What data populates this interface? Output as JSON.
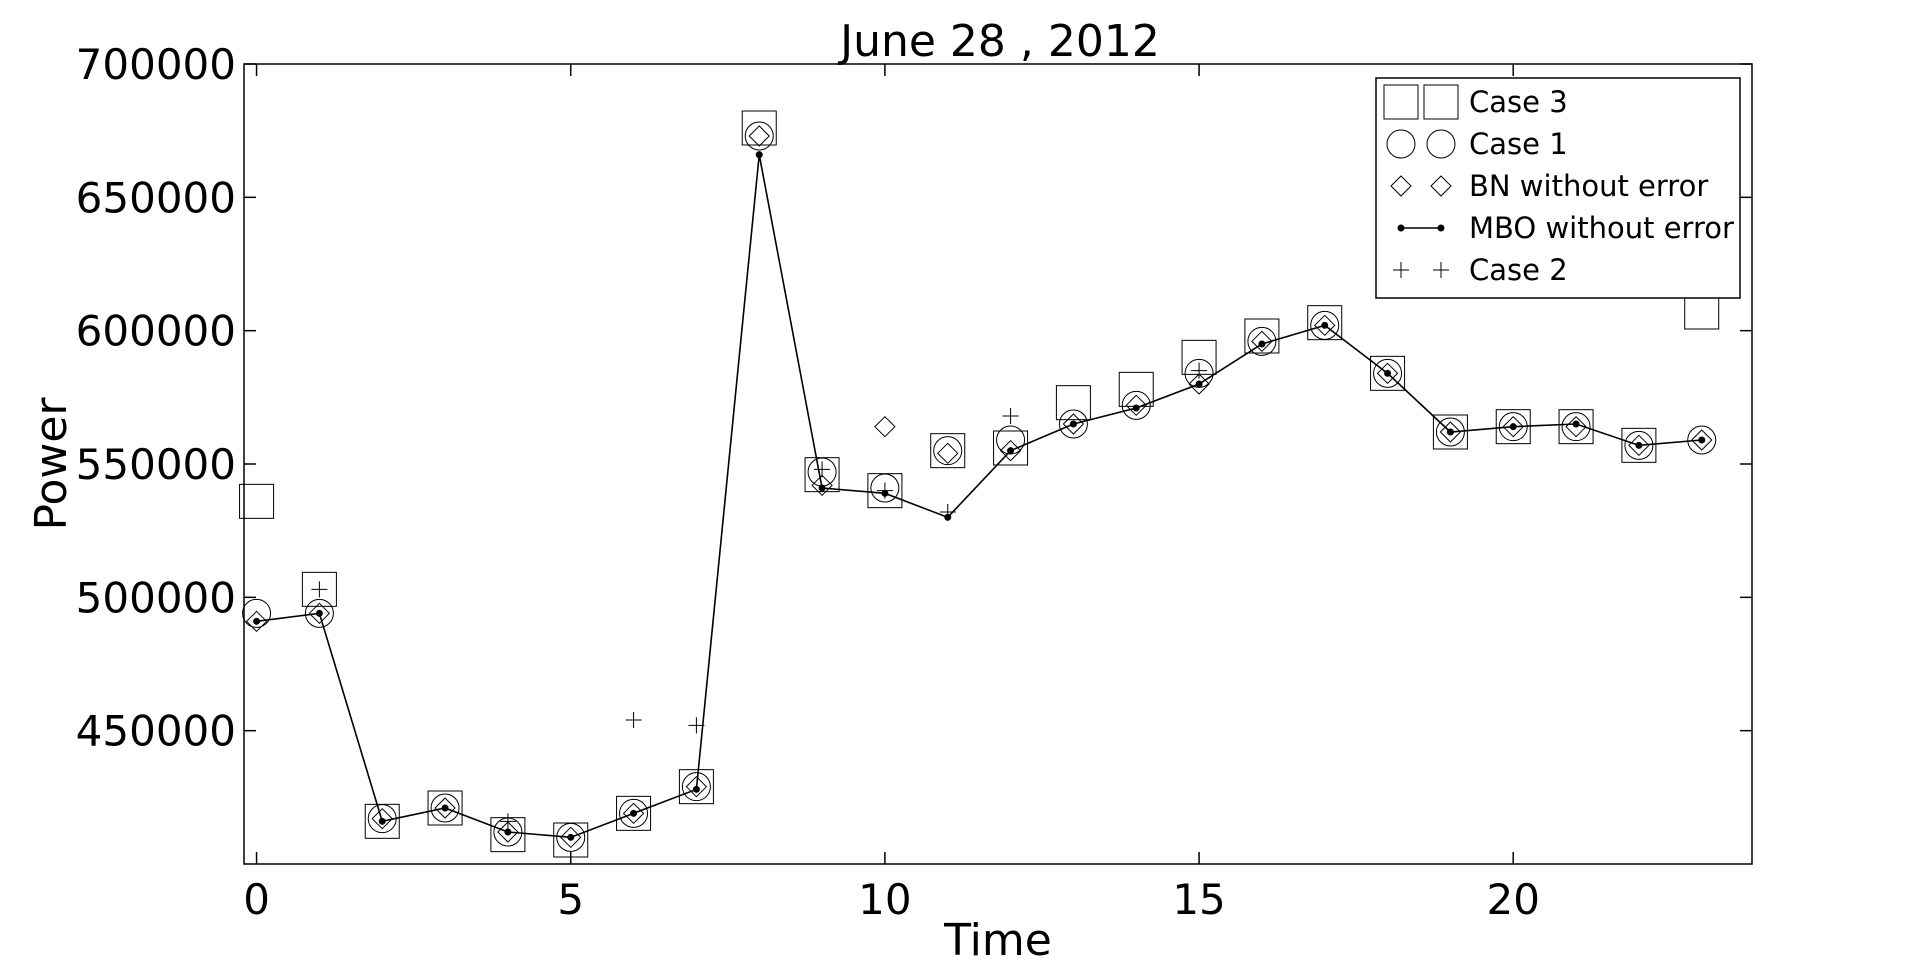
{
  "chart_data": {
    "type": "scatter",
    "title": "June 28 , 2012",
    "xlabel": "Time",
    "ylabel": "Power",
    "xlim": [
      -0.2,
      23.8
    ],
    "ylim": [
      400000,
      700000
    ],
    "xticks": [
      0,
      5,
      10,
      15,
      20
    ],
    "yticks": [
      450000,
      500000,
      550000,
      600000,
      650000,
      700000
    ],
    "xtick_labels": [
      "0",
      "5",
      "10",
      "15",
      "20"
    ],
    "ytick_labels": [
      "450000",
      "500000",
      "550000",
      "600000",
      "650000",
      "700000"
    ],
    "grid": false,
    "legend_position": "top-right",
    "series": [
      {
        "name": "Case 3",
        "marker": "square",
        "x": [
          0,
          1,
          2,
          3,
          4,
          5,
          6,
          7,
          8,
          9,
          10,
          11,
          12,
          13,
          14,
          15,
          16,
          17,
          18,
          19,
          20,
          21,
          22,
          23
        ],
        "y": [
          536000,
          503000,
          416000,
          421000,
          411000,
          409000,
          419000,
          429000,
          676000,
          546000,
          540000,
          555000,
          556000,
          573000,
          578000,
          590000,
          598000,
          603000,
          584000,
          562000,
          564000,
          564000,
          557000,
          607000
        ]
      },
      {
        "name": "Case 1",
        "marker": "circle",
        "x": [
          0,
          1,
          2,
          3,
          4,
          5,
          6,
          7,
          8,
          9,
          10,
          11,
          12,
          13,
          14,
          15,
          16,
          17,
          18,
          19,
          20,
          21,
          22,
          23
        ],
        "y": [
          494000,
          494000,
          417000,
          421000,
          412000,
          410000,
          419000,
          429000,
          673000,
          547000,
          541000,
          555000,
          559000,
          565000,
          572000,
          584000,
          596000,
          602000,
          584000,
          562000,
          564000,
          564000,
          557000,
          559000
        ]
      },
      {
        "name": "BN without error",
        "marker": "diamond",
        "x": [
          0,
          1,
          2,
          3,
          4,
          5,
          6,
          7,
          8,
          9,
          10,
          11,
          12,
          13,
          14,
          15,
          16,
          17,
          18,
          19,
          20,
          21,
          22,
          23
        ],
        "y": [
          491000,
          494000,
          417000,
          421000,
          412000,
          410000,
          419000,
          429000,
          673000,
          542000,
          564000,
          554000,
          555000,
          565000,
          572000,
          580000,
          596000,
          602000,
          584000,
          562000,
          564000,
          564000,
          557000,
          559000
        ]
      },
      {
        "name": "MBO without error",
        "marker": "line-dot",
        "x": [
          0,
          1,
          2,
          3,
          4,
          5,
          6,
          7,
          8,
          9,
          10,
          11,
          12,
          13,
          14,
          15,
          16,
          17,
          18,
          19,
          20,
          21,
          22,
          23
        ],
        "y": [
          491000,
          494000,
          416000,
          421000,
          412000,
          410000,
          419000,
          428000,
          666000,
          541000,
          539000,
          530000,
          555000,
          565000,
          571000,
          580000,
          595000,
          602000,
          584000,
          562000,
          564000,
          565000,
          557000,
          559000
        ]
      },
      {
        "name": "Case 2",
        "marker": "plus",
        "x": [
          1,
          4,
          6,
          7,
          9,
          10,
          11,
          12,
          15
        ],
        "y": [
          503000,
          416000,
          454000,
          452000,
          548000,
          540000,
          532000,
          568000,
          585000
        ]
      }
    ]
  }
}
